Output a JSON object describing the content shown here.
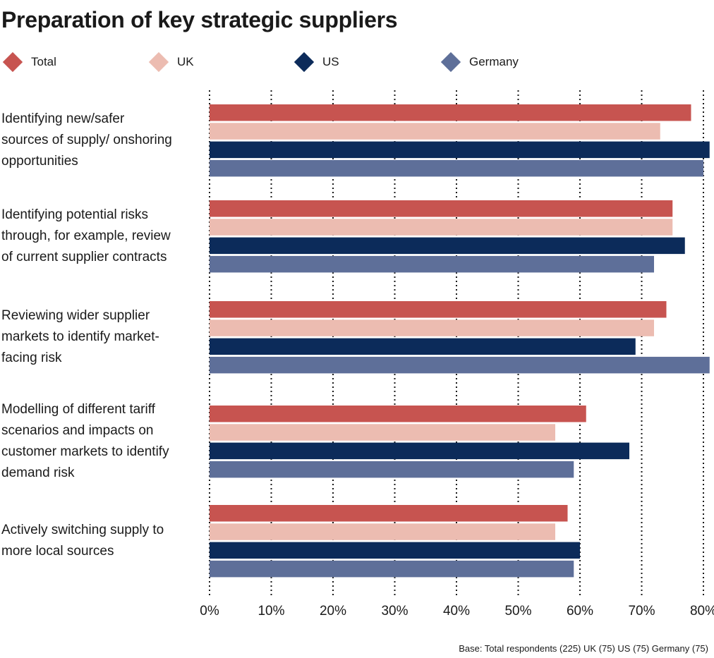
{
  "chart_data": {
    "type": "bar",
    "orientation": "horizontal",
    "title": "Preparation of key strategic suppliers",
    "categories": [
      "Identifying new/safer sources of supply/ onshoring opportunities",
      "Identifying potential risks through, for example, review of current supplier contracts",
      "Reviewing wider supplier markets to identify market-facing risk",
      "Modelling of different tariff scenarios and impacts on customer markets to identify demand risk",
      "Actively switching supply to more local sources"
    ],
    "category_lines": [
      [
        "Identifying new/safer",
        "sources of supply/ onshoring",
        "opportunities"
      ],
      [
        "Identifying potential risks",
        "through, for example, review",
        "of current supplier contracts"
      ],
      [
        "Reviewing wider supplier",
        "markets to identify market-",
        "facing risk"
      ],
      [
        "Modelling of different tariff",
        "scenarios and impacts on",
        "customer markets to identify",
        "demand risk"
      ],
      [
        "Actively switching supply to",
        "more local sources"
      ]
    ],
    "series": [
      {
        "name": "Total",
        "color": "#c75450",
        "values": [
          78,
          75,
          74,
          61,
          58
        ]
      },
      {
        "name": "UK",
        "color": "#ecbcb1",
        "values": [
          73,
          75,
          72,
          56,
          56
        ]
      },
      {
        "name": "US",
        "color": "#0c2b5a",
        "values": [
          81,
          77,
          69,
          68,
          60
        ]
      },
      {
        "name": "Germany",
        "color": "#5e6f99",
        "values": [
          80,
          72,
          81,
          59,
          59
        ]
      }
    ],
    "xlim": [
      0,
      81
    ],
    "xticks": [
      0,
      10,
      20,
      30,
      40,
      50,
      60,
      70,
      80
    ],
    "tick_suffix": "%",
    "grid": "dotted vertical lines",
    "legend_position": "top-left"
  },
  "footnote": "Base: Total respondents (225) UK (75) US (75) Germany (75)"
}
